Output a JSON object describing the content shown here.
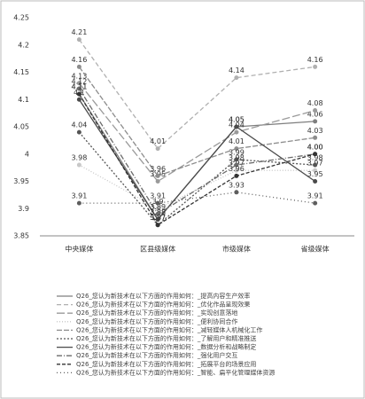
{
  "chart_data": {
    "type": "line",
    "categories": [
      "中央媒体",
      "区县级媒体",
      "市级媒体",
      "省级媒体"
    ],
    "ylim": [
      3.85,
      4.25
    ],
    "yticks": [
      3.85,
      3.9,
      3.95,
      4,
      4.05,
      4.1,
      4.15,
      4.2,
      4.25
    ],
    "series": [
      {
        "name": "Q26_您认为新技术在以下方面的作用如何：_提高内容生产效率",
        "color": "#7f7f7f",
        "values": [
          4.11,
          3.88,
          4.05,
          4.06
        ]
      },
      {
        "name": "Q26_您认为新技术在以下方面的作用如何：_优化作品呈现效果",
        "color": "#b0b0b0",
        "values": [
          4.21,
          4.01,
          4.14,
          4.16
        ]
      },
      {
        "name": "Q26_您认为新技术在以下方面的作用如何：_实现创意落地",
        "color": "#9a9a9a",
        "values": [
          4.13,
          3.95,
          4.04,
          4.08
        ]
      },
      {
        "name": "Q26_您认为新技术在以下方面的作用如何：_便利协同合作",
        "color": "#c8c8c8",
        "values": [
          3.98,
          3.9,
          3.97,
          3.97
        ]
      },
      {
        "name": "Q26_您认为新技术在以下方面的作用如何：_减轻媒体人机械化工作",
        "color": "#8c8c8c",
        "values": [
          4.16,
          3.96,
          4.01,
          4.03
        ]
      },
      {
        "name": "Q26_您认为新技术在以下方面的作用如何：_了解用户和精准推送",
        "color": "#555555",
        "values": [
          4.04,
          3.87,
          3.99,
          3.98
        ]
      },
      {
        "name": "Q26_您认为新技术在以下方面的作用如何：_数据分析和战略制定",
        "color": "#4a4a4a",
        "values": [
          4.1,
          3.88,
          4.05,
          3.95
        ]
      },
      {
        "name": "Q26_您认为新技术在以下方面的作用如何：_强化用户交互",
        "color": "#6b6b6b",
        "values": [
          4.12,
          3.89,
          3.98,
          4.0
        ],
        "value_labels": [
          "4.12",
          "3.89",
          "3.98",
          "4.00"
        ]
      },
      {
        "name": "Q26_您认为新技术在以下方面的作用如何：_拓展平台的场景应用",
        "color": "#333333",
        "values": [
          4.11,
          3.87,
          3.96,
          4.0
        ],
        "value_labels": [
          "4.11",
          "3.87",
          "3.96",
          "4.00"
        ]
      },
      {
        "name": "Q26_您认为新技术在以下方面的作用如何：_智能、扁平化管理媒体资源",
        "color": "#5e5e5e",
        "values": [
          3.91,
          3.91,
          3.93,
          3.91
        ]
      }
    ]
  }
}
